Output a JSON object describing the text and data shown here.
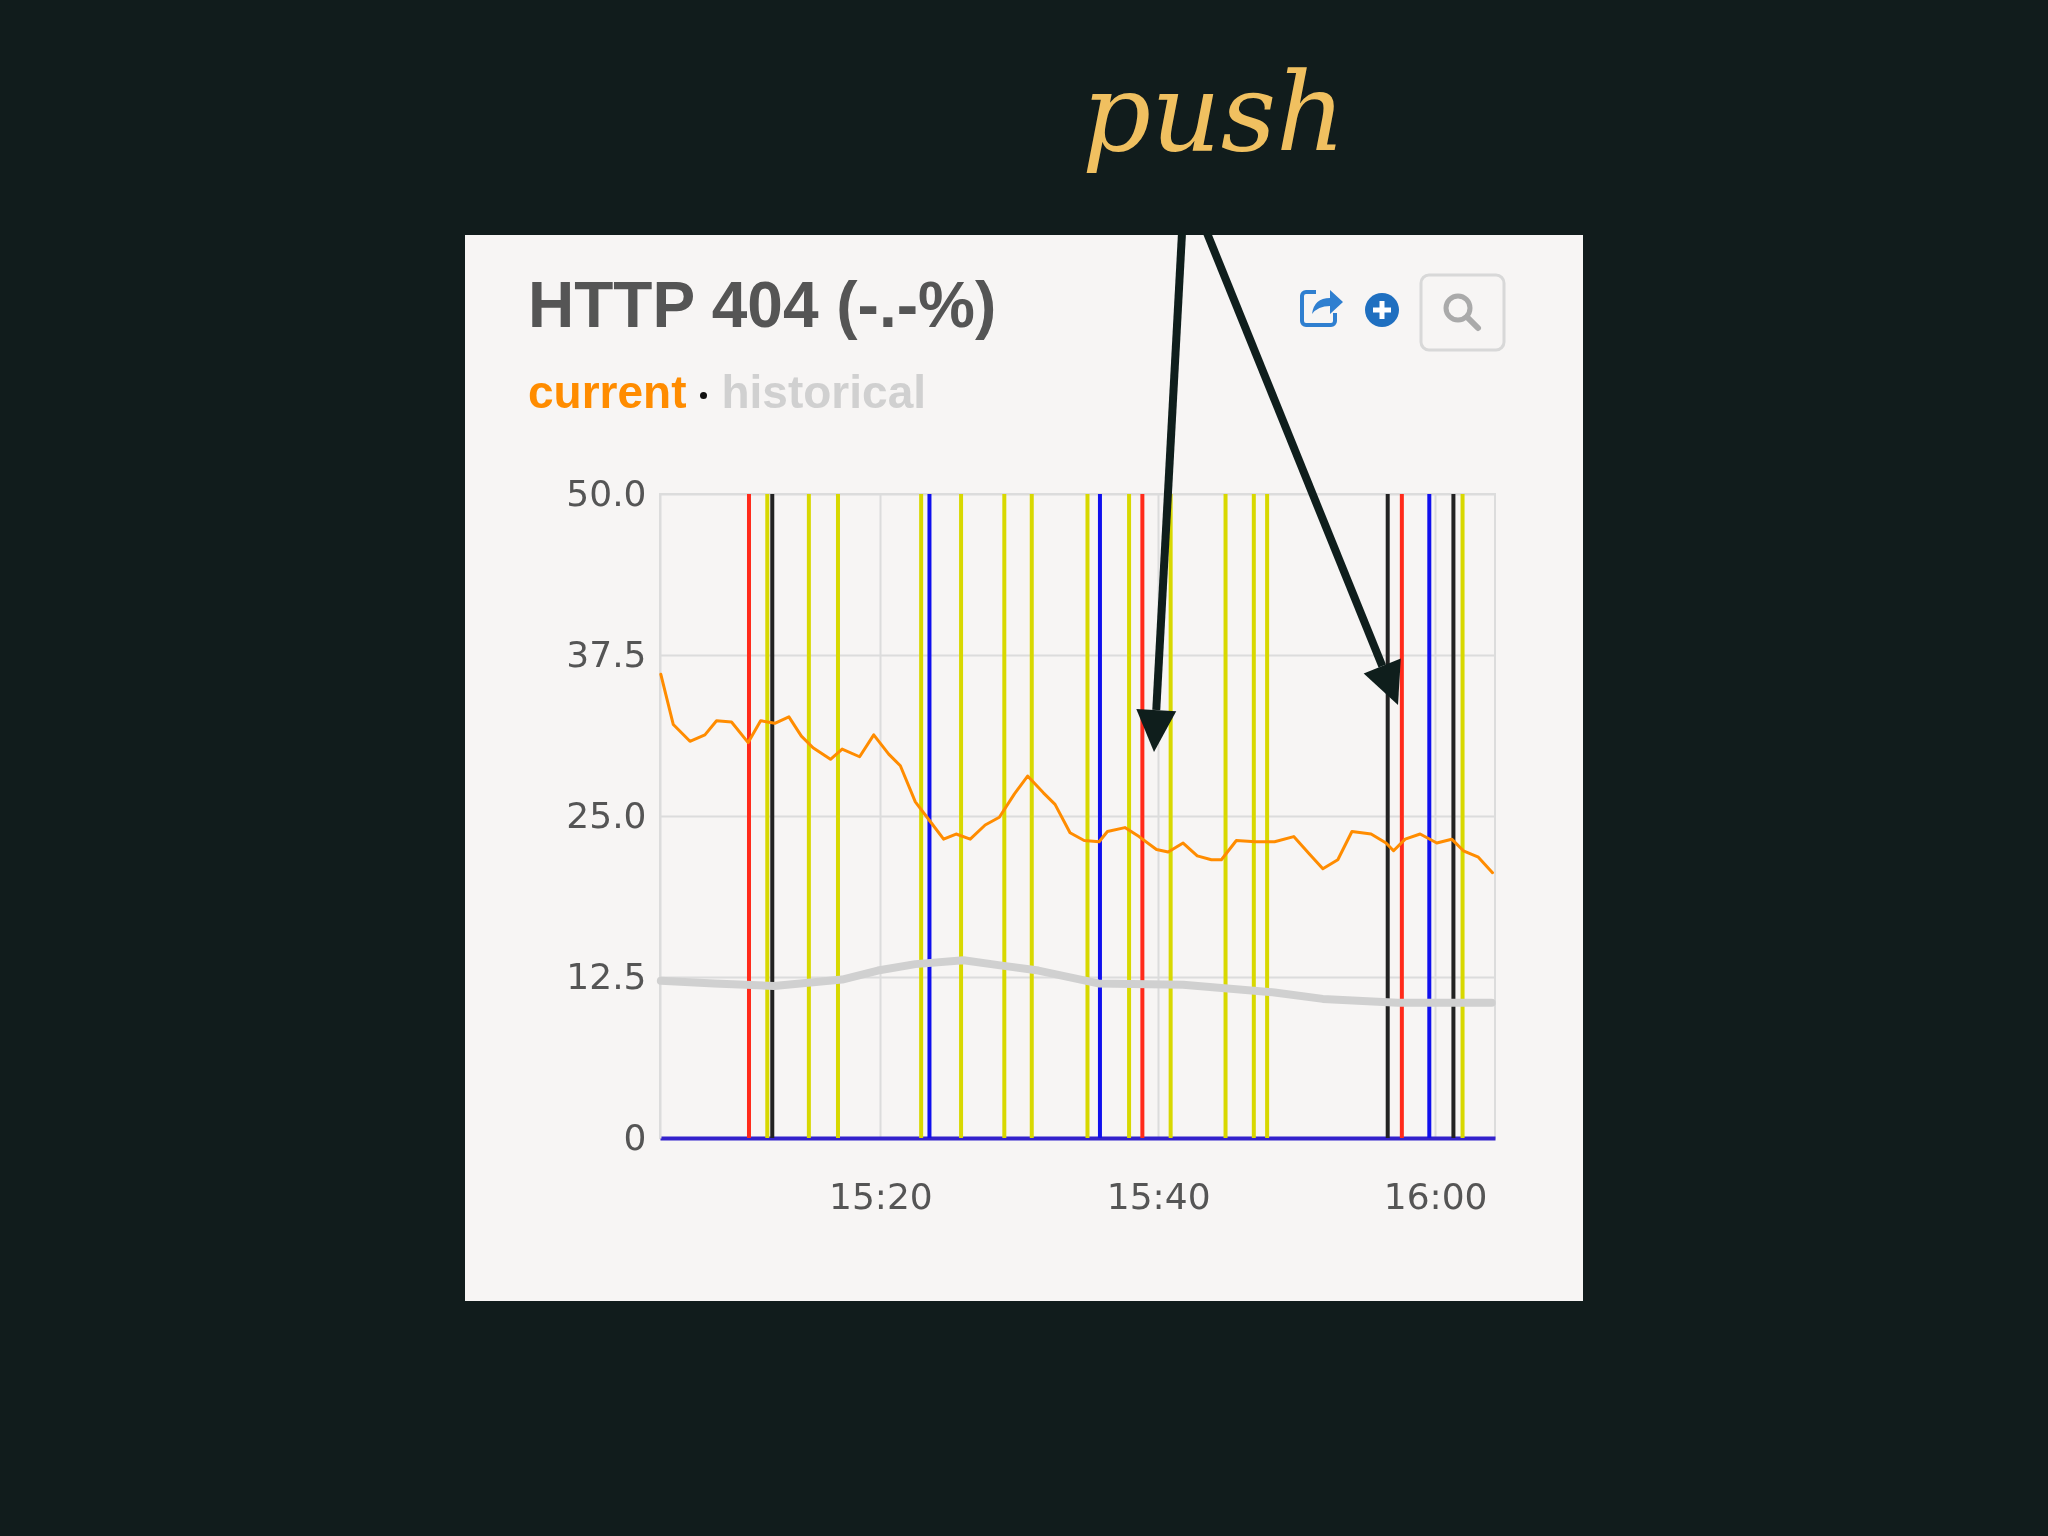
{
  "chart_data": {
    "type": "line",
    "title": "HTTP 404 (-.-%)",
    "annotations": [
      "push"
    ],
    "xlim": [
      15.068,
      16.072
    ],
    "xticks": [
      {
        "value": 15.333,
        "label": "15:20"
      },
      {
        "value": 15.667,
        "label": "15:40"
      },
      {
        "value": 16,
        "label": "16:00"
      }
    ],
    "ylim": [
      0,
      50
    ],
    "yticks": [
      0,
      {
        "value": 12.5,
        "label": "12.5"
      },
      {
        "value": 25,
        "label": "25.0"
      },
      {
        "value": 37.5,
        "label": "37.5"
      },
      {
        "value": 50,
        "label": "50.0"
      }
    ],
    "grid": true,
    "legend": "top left",
    "series": [
      {
        "name": "current",
        "color": "#ff8c00",
        "x": [
          15.069,
          15.084,
          15.104,
          15.122,
          15.136,
          15.154,
          15.174,
          15.189,
          15.206,
          15.223,
          15.238,
          15.252,
          15.273,
          15.287,
          15.308,
          15.325,
          15.343,
          15.357,
          15.375,
          15.395,
          15.409,
          15.424,
          15.441,
          15.459,
          15.476,
          15.494,
          15.51,
          15.529,
          15.543,
          15.561,
          15.578,
          15.596,
          15.606,
          15.627,
          15.644,
          15.665,
          15.679,
          15.697,
          15.714,
          15.731,
          15.743,
          15.761,
          15.784,
          15.807,
          15.83,
          15.848,
          15.865,
          15.883,
          15.9,
          15.923,
          15.941,
          15.95,
          15.964,
          15.982,
          16.002,
          16.02,
          16.034,
          16.052,
          16.069
        ],
        "values": [
          36.0,
          32.1,
          30.8,
          31.3,
          32.4,
          32.3,
          30.7,
          32.4,
          32.2,
          32.7,
          31.2,
          30.3,
          29.4,
          30.2,
          29.6,
          31.3,
          29.8,
          28.9,
          26.1,
          24.4,
          23.2,
          23.6,
          23.2,
          24.3,
          24.9,
          26.7,
          28.1,
          26.8,
          25.9,
          23.7,
          23.1,
          23.0,
          23.8,
          24.1,
          23.4,
          22.4,
          22.2,
          22.9,
          21.9,
          21.6,
          21.6,
          23.1,
          23.0,
          23.0,
          23.4,
          22.1,
          20.9,
          21.6,
          23.8,
          23.6,
          22.9,
          22.3,
          23.2,
          23.6,
          22.9,
          23.2,
          22.3,
          21.8,
          20.6
        ]
      },
      {
        "name": "historical",
        "color": "#d0d0d0",
        "x": [
          15.069,
          15.133,
          15.205,
          15.287,
          15.33,
          15.375,
          15.433,
          15.477,
          15.523,
          15.595,
          15.697,
          15.807,
          15.865,
          15.955,
          16.068
        ],
        "values": [
          12.2,
          12.0,
          11.8,
          12.3,
          13.0,
          13.5,
          13.8,
          13.4,
          13.0,
          12.0,
          11.9,
          11.3,
          10.8,
          10.5,
          10.5
        ]
      }
    ],
    "ref_lines": [
      {
        "axis": "x",
        "value": 15.175,
        "color": "#ff2a1a"
      },
      {
        "axis": "x",
        "value": 15.197,
        "color": "#d8d800"
      },
      {
        "axis": "x",
        "value": 15.203,
        "color": "#222222"
      },
      {
        "axis": "x",
        "value": 15.247,
        "color": "#d8d800"
      },
      {
        "axis": "x",
        "value": 15.282,
        "color": "#d8d800"
      },
      {
        "axis": "x",
        "value": 15.382,
        "color": "#d8d800"
      },
      {
        "axis": "x",
        "value": 15.392,
        "color": "#1010ee"
      },
      {
        "axis": "x",
        "value": 15.43,
        "color": "#d8d800"
      },
      {
        "axis": "x",
        "value": 15.482,
        "color": "#d8d800"
      },
      {
        "axis": "x",
        "value": 15.515,
        "color": "#d8d800"
      },
      {
        "axis": "x",
        "value": 15.582,
        "color": "#d8d800"
      },
      {
        "axis": "x",
        "value": 15.597,
        "color": "#1010ee"
      },
      {
        "axis": "x",
        "value": 15.632,
        "color": "#d8d800"
      },
      {
        "axis": "x",
        "value": 15.648,
        "color": "#ff2a1a"
      },
      {
        "axis": "x",
        "value": 15.682,
        "color": "#d8d800"
      },
      {
        "axis": "x",
        "value": 15.748,
        "color": "#d8d800"
      },
      {
        "axis": "x",
        "value": 15.782,
        "color": "#d8d800"
      },
      {
        "axis": "x",
        "value": 15.798,
        "color": "#d8d800"
      },
      {
        "axis": "x",
        "value": 15.943,
        "color": "#222222"
      },
      {
        "axis": "x",
        "value": 15.96,
        "color": "#ff2a1a"
      },
      {
        "axis": "x",
        "value": 15.993,
        "color": "#1010ee"
      },
      {
        "axis": "x",
        "value": 16.022,
        "color": "#222222"
      },
      {
        "axis": "x",
        "value": 16.033,
        "color": "#d8d800"
      }
    ]
  }
}
